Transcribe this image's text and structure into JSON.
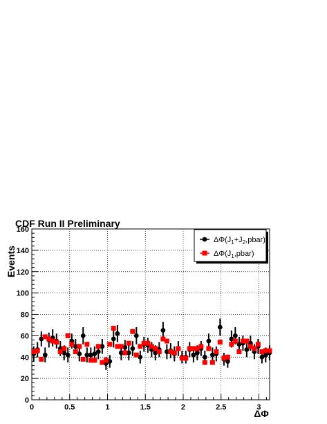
{
  "chart_data": {
    "type": "scatter",
    "title": "CDF Run II Preliminary",
    "xlabel": "ΔΦ",
    "ylabel": "Events",
    "xlim": [
      0,
      3.14159
    ],
    "ylim": [
      0,
      160
    ],
    "grid": true,
    "legend_position": "top-right",
    "x_ticks": [
      0,
      0.5,
      1,
      1.5,
      2,
      2.5,
      3
    ],
    "x_tick_labels": [
      "0",
      "0.5",
      "1",
      "1.5",
      "2",
      "2.5",
      "3"
    ],
    "y_ticks": [
      0,
      20,
      40,
      60,
      80,
      100,
      120,
      140,
      160
    ],
    "y_tick_labels": [
      "0",
      "20",
      "40",
      "60",
      "80",
      "100",
      "120",
      "140",
      "160"
    ],
    "x": [
      0.025,
      0.075,
      0.126,
      0.176,
      0.226,
      0.276,
      0.327,
      0.377,
      0.427,
      0.477,
      0.528,
      0.578,
      0.628,
      0.678,
      0.729,
      0.779,
      0.829,
      0.879,
      0.93,
      0.98,
      1.03,
      1.08,
      1.131,
      1.181,
      1.231,
      1.281,
      1.332,
      1.382,
      1.432,
      1.482,
      1.533,
      1.583,
      1.633,
      1.683,
      1.734,
      1.784,
      1.834,
      1.884,
      1.935,
      1.985,
      2.035,
      2.085,
      2.136,
      2.186,
      2.236,
      2.286,
      2.337,
      2.387,
      2.437,
      2.487,
      2.538,
      2.588,
      2.638,
      2.688,
      2.739,
      2.789,
      2.839,
      2.889,
      2.94,
      2.99,
      3.04,
      3.09,
      3.141
    ],
    "series": [
      {
        "name": "ΔΦ(J1+J2,pbar)",
        "name_parts": {
          "pre": "ΔΦ(J",
          "sub1": "1",
          "mid": "+J",
          "sub2": "2",
          "post": ",pbar)"
        },
        "color": "#000000",
        "marker": "circle",
        "values": [
          43,
          47,
          57,
          42,
          56,
          58,
          55,
          48,
          44,
          42,
          55,
          50,
          43,
          60,
          42,
          42,
          43,
          45,
          50,
          34,
          36,
          57,
          62,
          44,
          49,
          44,
          48,
          60,
          40,
          52,
          51,
          47,
          44,
          47,
          65,
          45,
          46,
          43,
          48,
          40,
          40,
          47,
          42,
          44,
          48,
          40,
          55,
          42,
          43,
          68,
          38,
          36,
          57,
          60,
          52,
          53,
          47,
          53,
          45,
          50,
          40,
          42,
          44
        ],
        "errors": [
          7,
          7,
          7,
          7,
          7,
          8,
          7,
          7,
          7,
          7,
          7,
          7,
          7,
          8,
          7,
          7,
          7,
          7,
          7,
          6,
          6,
          8,
          8,
          7,
          7,
          7,
          7,
          8,
          6,
          7,
          7,
          7,
          7,
          7,
          8,
          7,
          7,
          7,
          7,
          6,
          6,
          7,
          7,
          7,
          7,
          6,
          7,
          7,
          7,
          8,
          6,
          6,
          8,
          8,
          7,
          7,
          7,
          7,
          7,
          7,
          6,
          7,
          7
        ]
      },
      {
        "name": "ΔΦ(J1,pbar)",
        "name_parts": {
          "pre": "ΔΦ(J",
          "sub1": "1",
          "mid": "",
          "sub2": "",
          "post": ",pbar)"
        },
        "color": "#ff0000",
        "marker": "square",
        "values": [
          45,
          46,
          38,
          59,
          57,
          55,
          54,
          45,
          48,
          60,
          52,
          45,
          50,
          38,
          52,
          37,
          37,
          50,
          35,
          37,
          52,
          67,
          50,
          50,
          44,
          53,
          64,
          42,
          50,
          53,
          53,
          50,
          48,
          45,
          57,
          55,
          45,
          44,
          48,
          39,
          39,
          48,
          48,
          48,
          50,
          35,
          48,
          35,
          45,
          54,
          39,
          40,
          52,
          55,
          45,
          55,
          55,
          50,
          48,
          52,
          45,
          46,
          46
        ]
      }
    ]
  }
}
